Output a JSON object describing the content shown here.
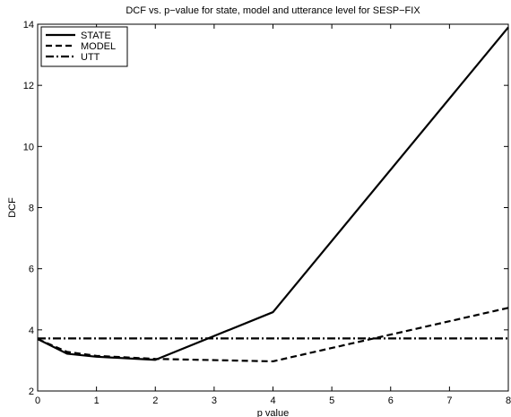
{
  "chart_data": {
    "type": "line",
    "title": "DCF vs. p−value for state, model and utterance level for SESP−FIX",
    "xlabel": "p value",
    "ylabel": "DCF",
    "xlim": [
      0,
      8
    ],
    "ylim": [
      2,
      14
    ],
    "xticks": [
      "0",
      "1",
      "2",
      "3",
      "4",
      "5",
      "6",
      "7",
      "8"
    ],
    "yticks": [
      "2",
      "4",
      "6",
      "8",
      "10",
      "12",
      "14"
    ],
    "grid": false,
    "legend_position": "top-left",
    "series": [
      {
        "name": "STATE",
        "style": "solid",
        "color": "#000000",
        "x": [
          0,
          0.5,
          1,
          2,
          4,
          8
        ],
        "y": [
          3.7,
          3.22,
          3.12,
          3.02,
          4.58,
          13.9
        ]
      },
      {
        "name": "MODEL",
        "style": "dashed",
        "color": "#000000",
        "x": [
          0,
          0.5,
          1,
          2,
          4,
          8
        ],
        "y": [
          3.7,
          3.28,
          3.15,
          3.05,
          2.97,
          4.72
        ]
      },
      {
        "name": "UTT",
        "style": "dashdot",
        "color": "#000000",
        "x": [
          0,
          8
        ],
        "y": [
          3.72,
          3.72
        ]
      }
    ]
  }
}
